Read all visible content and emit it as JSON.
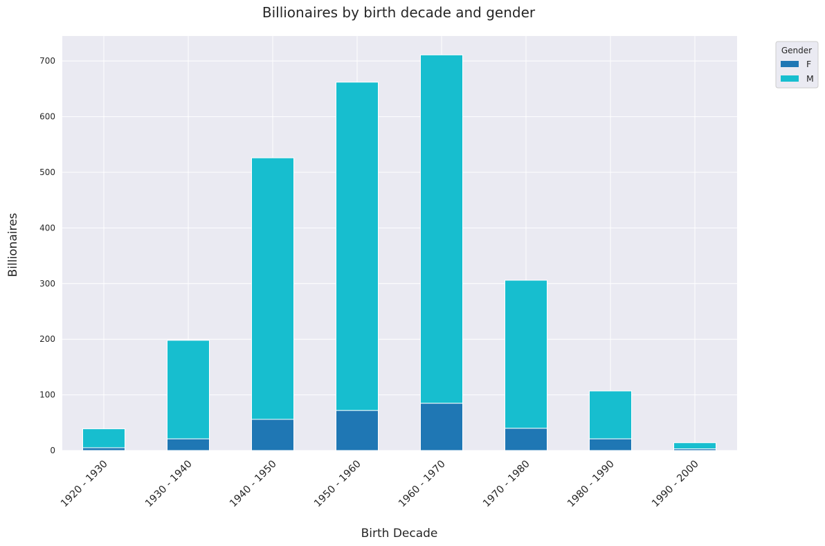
{
  "chart_data": {
    "type": "bar",
    "stacked": true,
    "title": "Billionaires by birth decade and gender",
    "xlabel": "Birth Decade",
    "ylabel": "Billionaires",
    "categories": [
      "1920 - 1930",
      "1930 - 1940",
      "1940 - 1950",
      "1950 - 1960",
      "1960 - 1970",
      "1970 - 1980",
      "1980 - 1990",
      "1990 - 2000"
    ],
    "series": [
      {
        "name": "F",
        "color": "#1f77b4",
        "values": [
          5,
          21,
          56,
          72,
          85,
          40,
          21,
          3
        ]
      },
      {
        "name": "M",
        "color": "#17becf",
        "values": [
          34,
          177,
          470,
          590,
          626,
          266,
          86,
          11
        ]
      }
    ],
    "ylim": [
      0,
      745
    ],
    "yticks": [
      0,
      100,
      200,
      300,
      400,
      500,
      600,
      700
    ],
    "grid": true,
    "legend": {
      "title": "Gender",
      "position": "upper-right-outside"
    }
  }
}
